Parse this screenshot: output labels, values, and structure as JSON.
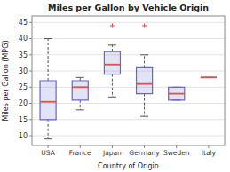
{
  "chart_data": {
    "type": "box",
    "title": "Miles per Gallon by Vehicle Origin",
    "xlabel": "Country of Origin",
    "ylabel": "Miles per Gallon (MPG)",
    "categories": [
      "USA",
      "France",
      "Japan",
      "Germany",
      "Sweden",
      "Italy"
    ],
    "boxes": [
      {
        "q1": 15.0,
        "median": 20.5,
        "q3": 27.0,
        "whislo": 9.0,
        "whishi": 40.0,
        "fliers": []
      },
      {
        "q1": 21.0,
        "median": 25.0,
        "q3": 27.0,
        "whislo": 18.0,
        "whishi": 28.0,
        "fliers": []
      },
      {
        "q1": 29.0,
        "median": 32.0,
        "q3": 36.0,
        "whislo": 22.0,
        "whishi": 38.0,
        "fliers": [
          44.0
        ]
      },
      {
        "q1": 23.0,
        "median": 26.0,
        "q3": 31.0,
        "whislo": 16.0,
        "whishi": 35.0,
        "fliers": [
          44.0
        ]
      },
      {
        "q1": 21.0,
        "median": 23.0,
        "q3": 25.0,
        "whislo": 21.0,
        "whishi": 25.0,
        "fliers": []
      },
      {
        "q1": 28.0,
        "median": 28.0,
        "q3": 28.0,
        "whislo": 28.0,
        "whishi": 28.0,
        "fliers": []
      }
    ],
    "color": "#6666cc",
    "ylim": [
      7,
      47
    ],
    "yticks": [
      10,
      15,
      20,
      25,
      30,
      35,
      40,
      45
    ],
    "grid": true
  }
}
